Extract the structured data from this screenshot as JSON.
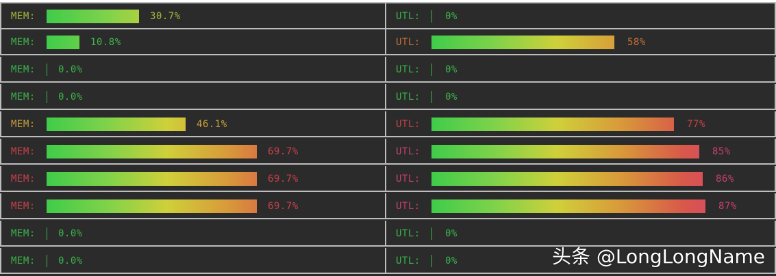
{
  "rows": [
    {
      "mem": {
        "label": "MEM:",
        "value": "30.7%",
        "pct": 30.7,
        "color": "#a7b83a"
      },
      "utl": {
        "label": "UTL:",
        "value": "0%",
        "pct": 0,
        "color": "#3ab54a"
      }
    },
    {
      "mem": {
        "label": "MEM:",
        "value": "10.8%",
        "pct": 10.8,
        "color": "#3fb54a"
      },
      "utl": {
        "label": "UTL:",
        "value": "58%",
        "pct": 58,
        "color": "#c8703a"
      }
    },
    {
      "mem": {
        "label": "MEM:",
        "value": "0.0%",
        "pct": 0,
        "color": "#3ab54a"
      },
      "utl": {
        "label": "UTL:",
        "value": "0%",
        "pct": 0,
        "color": "#3ab54a"
      }
    },
    {
      "mem": {
        "label": "MEM:",
        "value": "0.0%",
        "pct": 0,
        "color": "#3ab54a"
      },
      "utl": {
        "label": "UTL:",
        "value": "0%",
        "pct": 0,
        "color": "#3ab54a"
      }
    },
    {
      "mem": {
        "label": "MEM:",
        "value": "46.1%",
        "pct": 46.1,
        "color": "#c8a03a"
      },
      "utl": {
        "label": "UTL:",
        "value": "77%",
        "pct": 77,
        "color": "#c8404a"
      }
    },
    {
      "mem": {
        "label": "MEM:",
        "value": "69.7%",
        "pct": 69.7,
        "color": "#c8404a"
      },
      "utl": {
        "label": "UTL:",
        "value": "85%",
        "pct": 85,
        "color": "#c84070"
      }
    },
    {
      "mem": {
        "label": "MEM:",
        "value": "69.7%",
        "pct": 69.7,
        "color": "#c8404a"
      },
      "utl": {
        "label": "UTL:",
        "value": "86%",
        "pct": 86,
        "color": "#c84070"
      }
    },
    {
      "mem": {
        "label": "MEM:",
        "value": "69.7%",
        "pct": 69.7,
        "color": "#c8404a"
      },
      "utl": {
        "label": "UTL:",
        "value": "87%",
        "pct": 87,
        "color": "#c84070"
      }
    },
    {
      "mem": {
        "label": "MEM:",
        "value": "0.0%",
        "pct": 0,
        "color": "#3ab54a"
      },
      "utl": {
        "label": "UTL:",
        "value": "0%",
        "pct": 0,
        "color": "#3ab54a"
      }
    },
    {
      "mem": {
        "label": "MEM:",
        "value": "0.0%",
        "pct": 0,
        "color": "#3ab54a"
      },
      "utl": {
        "label": "UTL:",
        "value": "0%",
        "pct": 0,
        "color": "#3ab54a"
      }
    }
  ],
  "watermark": "头条 @LongLongName",
  "colors": {
    "background": "#2b2b2b",
    "grid_line": "#bdbdbd",
    "gradient_stops": [
      "#3fcc4a",
      "#7fd24a",
      "#cfd03a",
      "#d89a3a",
      "#d8584a",
      "#d8407a"
    ]
  }
}
